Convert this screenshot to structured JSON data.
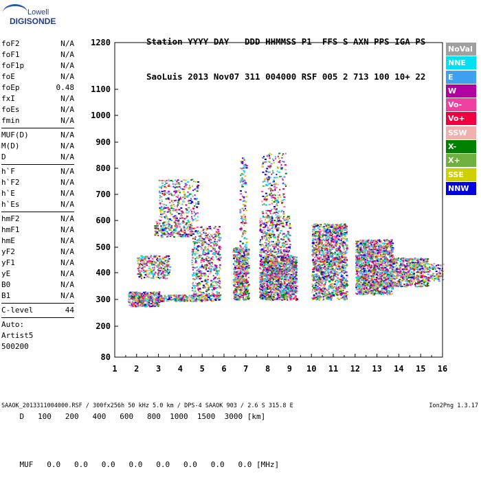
{
  "logo": {
    "line1": "Lowell",
    "line2": "DIGISONDE"
  },
  "header": {
    "labels": "Station YYYY DAY   DDD HHMMSS P1  FFS S AXN PPS IGA PS",
    "values": "SaoLuis 2013 Nov07 311 004000 RSF 005 2 713 100 10+ 22"
  },
  "params": {
    "group1": [
      {
        "name": "foF2",
        "value": "N/A"
      },
      {
        "name": "foF1",
        "value": "N/A"
      },
      {
        "name": "foF1p",
        "value": "N/A"
      },
      {
        "name": "foE",
        "value": "N/A"
      },
      {
        "name": "foEp",
        "value": "0.48"
      },
      {
        "name": "fxI",
        "value": "N/A"
      },
      {
        "name": "foEs",
        "value": "N/A"
      },
      {
        "name": "fmin",
        "value": "N/A"
      }
    ],
    "group2": [
      {
        "name": "MUF(D)",
        "value": "N/A"
      },
      {
        "name": "M(D)",
        "value": "N/A"
      },
      {
        "name": "D",
        "value": "N/A"
      }
    ],
    "group3": [
      {
        "name": "h`F",
        "value": "N/A"
      },
      {
        "name": "h`F2",
        "value": "N/A"
      },
      {
        "name": "h`E",
        "value": "N/A"
      },
      {
        "name": "h`Es",
        "value": "N/A"
      }
    ],
    "group4": [
      {
        "name": "hmF2",
        "value": "N/A"
      },
      {
        "name": "hmF1",
        "value": "N/A"
      },
      {
        "name": "hmE",
        "value": "N/A"
      },
      {
        "name": "yF2",
        "value": "N/A"
      },
      {
        "name": "yF1",
        "value": "N/A"
      },
      {
        "name": "yE",
        "value": "N/A"
      },
      {
        "name": "B0",
        "value": "N/A"
      },
      {
        "name": "B1",
        "value": "N/A"
      }
    ],
    "clevel": {
      "name": "C-level",
      "value": "44"
    },
    "auto": [
      "Auto:",
      "Artist5",
      "500200"
    ]
  },
  "legend": [
    {
      "label": "NoVal",
      "color": "#a0a0a0"
    },
    {
      "label": "NNE",
      "color": "#00e0f0"
    },
    {
      "label": "E",
      "color": "#40a0f0"
    },
    {
      "label": "W",
      "color": "#b000a0"
    },
    {
      "label": "Vo-",
      "color": "#f040a0"
    },
    {
      "label": "Vo+",
      "color": "#f00040"
    },
    {
      "label": "SSW",
      "color": "#f0b0b0"
    },
    {
      "label": "X-",
      "color": "#008000"
    },
    {
      "label": "X+",
      "color": "#70b040"
    },
    {
      "label": "SSE",
      "color": "#d0d000"
    },
    {
      "label": "NNW",
      "color": "#0000e0"
    }
  ],
  "chart_data": {
    "type": "scatter",
    "x_ticks": [
      "1",
      "2",
      "3",
      "4",
      "5",
      "6",
      "7",
      "8",
      "9",
      "10",
      "11",
      "12",
      "13",
      "14",
      "15",
      "16"
    ],
    "y_ticks": [
      "80",
      "200",
      "300",
      "400",
      "500",
      "600",
      "700",
      "800",
      "900",
      "1000",
      "1100",
      "1280"
    ],
    "xlim": [
      1,
      16
    ],
    "ylim": [
      80,
      1280
    ],
    "y_scale": "ionogram (compressed upper range)",
    "clusters": [
      {
        "x": [
          1.6,
          3.0
        ],
        "y": [
          275,
          330
        ],
        "density": 1.0
      },
      {
        "x": [
          3.0,
          5.8
        ],
        "y": [
          295,
          320
        ],
        "density": 0.9
      },
      {
        "x": [
          2.0,
          3.5
        ],
        "y": [
          380,
          470
        ],
        "density": 0.5
      },
      {
        "x": [
          2.8,
          4.5
        ],
        "y": [
          540,
          600
        ],
        "density": 0.5
      },
      {
        "x": [
          3.0,
          4.8
        ],
        "y": [
          600,
          760
        ],
        "density": 0.25
      },
      {
        "x": [
          4.5,
          5.8
        ],
        "y": [
          310,
          580
        ],
        "density": 0.35
      },
      {
        "x": [
          6.4,
          7.1
        ],
        "y": [
          300,
          500
        ],
        "density": 0.9
      },
      {
        "x": [
          6.7,
          7.0
        ],
        "y": [
          500,
          850
        ],
        "density": 0.3
      },
      {
        "x": [
          7.6,
          9.3
        ],
        "y": [
          300,
          470
        ],
        "density": 1.0
      },
      {
        "x": [
          7.6,
          9.0
        ],
        "y": [
          470,
          620
        ],
        "density": 0.4
      },
      {
        "x": [
          7.7,
          8.8
        ],
        "y": [
          620,
          860
        ],
        "density": 0.2
      },
      {
        "x": [
          10.0,
          11.6
        ],
        "y": [
          300,
          590
        ],
        "density": 0.9
      },
      {
        "x": [
          12.0,
          13.7
        ],
        "y": [
          320,
          530
        ],
        "density": 0.9
      },
      {
        "x": [
          13.7,
          15.3
        ],
        "y": [
          350,
          460
        ],
        "density": 0.7
      },
      {
        "x": [
          15.3,
          16.0
        ],
        "y": [
          370,
          440
        ],
        "density": 0.4
      }
    ]
  },
  "dtable": {
    "d_label": "D",
    "d_values": [
      "100",
      "200",
      "400",
      "600",
      "800",
      "1000",
      "1500",
      "3000"
    ],
    "d_unit": "[km]",
    "muf_label": "MUF",
    "muf_values": [
      "0.0",
      "0.0",
      "0.0",
      "0.0",
      "0.0",
      "0.0",
      "0.0",
      "0.0"
    ],
    "muf_unit": "[MHz]"
  },
  "footer": "SAAOK_2013311004000.RSF / 300fx256h 50 kHz 5.0 km / DPS-4 SAAOK 903 / 2.6 S 315.8 E",
  "version": "Ion2Png 1.3.17"
}
